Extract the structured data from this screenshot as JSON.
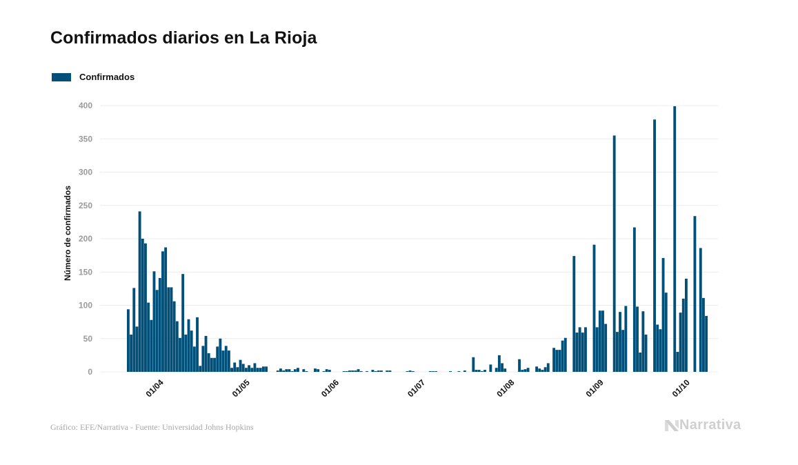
{
  "header": {
    "title": "Confirmados diarios en La Rioja"
  },
  "footer": {
    "source": "Gráfico: EFE/Narrativa - Fuente: Universidad Johns Hopkins",
    "brand": "Narrativa",
    "brand_icon": "narrativa-logo-icon"
  },
  "colors": {
    "bar": "#00507a",
    "grid": "#ececec",
    "tick": "#9a9a9a"
  },
  "chart_data": {
    "type": "bar",
    "title": "Confirmados diarios en La Rioja",
    "xlabel": "",
    "ylabel": "Número de confirmados",
    "ylim": [
      0,
      400
    ],
    "yticks": [
      0,
      50,
      100,
      150,
      200,
      250,
      300,
      350,
      400
    ],
    "grid": true,
    "legend": {
      "position": "top-left",
      "entries": [
        "Confirmados"
      ]
    },
    "start_date": "2020-03-23",
    "xtick_labels": [
      {
        "label": "01/04",
        "day_index": 9
      },
      {
        "label": "01/05",
        "day_index": 39
      },
      {
        "label": "01/06",
        "day_index": 70
      },
      {
        "label": "01/07",
        "day_index": 100
      },
      {
        "label": "01/08",
        "day_index": 131
      },
      {
        "label": "01/09",
        "day_index": 162
      },
      {
        "label": "01/10",
        "day_index": 192
      }
    ],
    "series": [
      {
        "name": "Confirmados",
        "values": [
          94,
          56,
          126,
          68,
          241,
          200,
          193,
          104,
          78,
          151,
          123,
          141,
          181,
          187,
          127,
          127,
          106,
          76,
          51,
          147,
          56,
          79,
          62,
          38,
          82,
          9,
          39,
          54,
          28,
          21,
          21,
          38,
          50,
          32,
          39,
          32,
          6,
          14,
          7,
          18,
          12,
          6,
          10,
          6,
          13,
          6,
          6,
          8,
          8,
          0,
          0,
          0,
          2,
          5,
          2,
          4,
          4,
          1,
          4,
          6,
          0,
          4,
          1,
          0,
          0,
          5,
          4,
          0,
          1,
          4,
          3,
          0,
          0,
          0,
          0,
          1,
          1,
          2,
          2,
          2,
          4,
          1,
          0,
          1,
          0,
          3,
          1,
          2,
          2,
          0,
          2,
          2,
          0,
          0,
          0,
          0,
          0,
          1,
          2,
          1,
          0,
          0,
          0,
          0,
          0,
          1,
          1,
          1,
          0,
          0,
          0,
          0,
          1,
          0,
          0,
          1,
          0,
          2,
          0,
          0,
          22,
          3,
          3,
          1,
          3,
          0,
          11,
          0,
          6,
          25,
          13,
          5,
          0,
          0,
          0,
          0,
          19,
          3,
          4,
          6,
          0,
          0,
          8,
          5,
          3,
          7,
          13,
          0,
          36,
          33,
          33,
          47,
          51,
          0,
          0,
          174,
          59,
          67,
          59,
          67,
          0,
          0,
          191,
          67,
          92,
          92,
          72,
          0,
          0,
          355,
          60,
          90,
          63,
          99,
          0,
          0,
          217,
          98,
          29,
          91,
          56,
          0,
          0,
          379,
          71,
          64,
          171,
          119,
          0,
          0,
          399,
          30,
          89,
          110,
          140,
          0,
          0,
          234,
          0,
          186,
          111,
          84
        ]
      }
    ]
  }
}
